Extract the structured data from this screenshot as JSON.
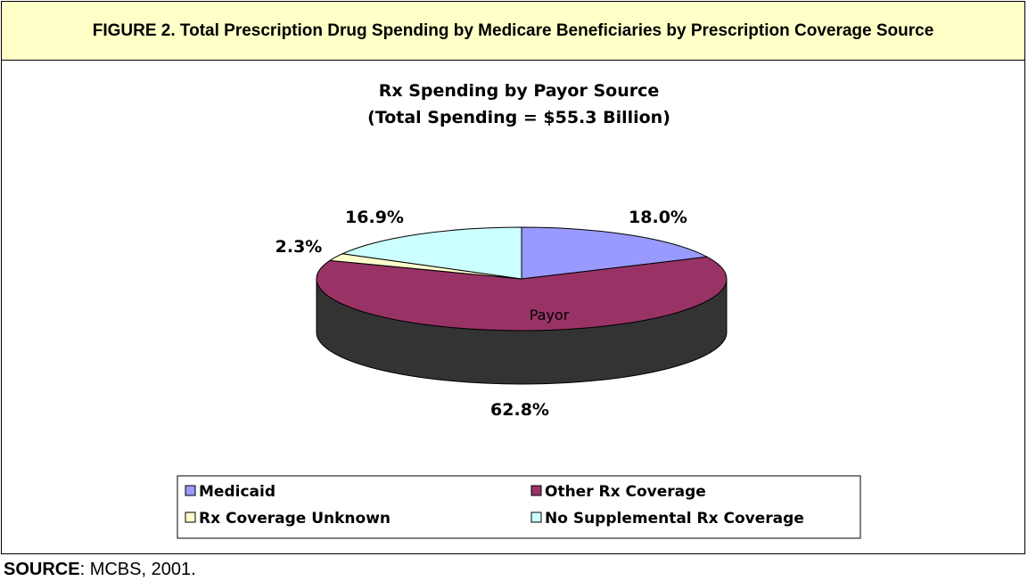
{
  "figure": {
    "title": "FIGURE 2.  Total Prescription Drug Spending by Medicare Beneficiaries by Prescription Coverage Source"
  },
  "source": {
    "label": "SOURCE",
    "text": ":  MCBS, 2001."
  },
  "chart_data": {
    "type": "pie",
    "title": "Rx Spending by Payor Source",
    "subtitle": "(Total Spending = $55.3 Billion)",
    "center_label": "Payor",
    "legend_position": "bottom",
    "categories": [
      "Medicaid",
      "Other Rx Coverage",
      "Rx Coverage Unknown",
      "No Supplemental Rx Coverage"
    ],
    "values": [
      18.0,
      62.8,
      2.3,
      16.9
    ],
    "data_labels": [
      "18.0%",
      "62.8%",
      "2.3%",
      "16.9%"
    ],
    "colors": [
      "#9999ff",
      "#993366",
      "#ffffcc",
      "#ccffff"
    ],
    "side_color": "#333333"
  }
}
